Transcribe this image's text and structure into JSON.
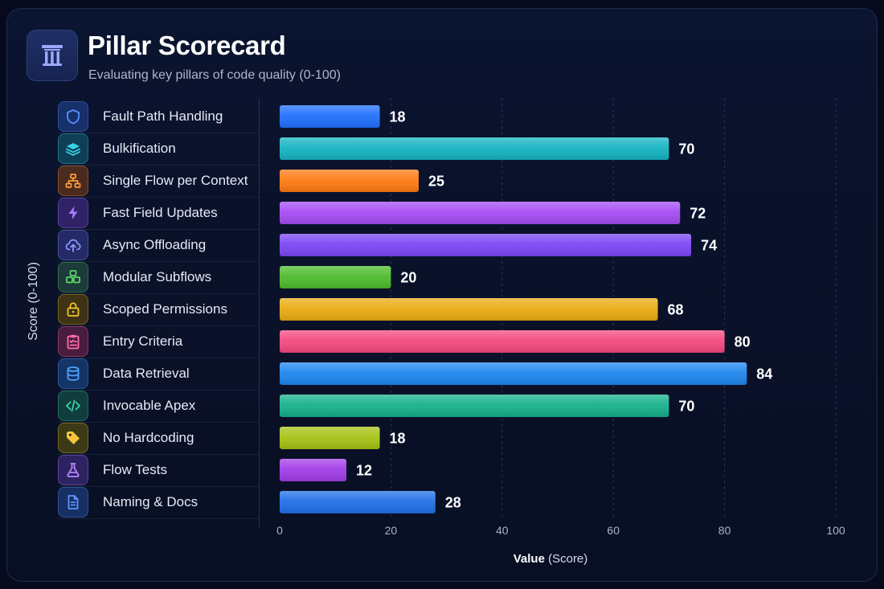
{
  "header": {
    "title": "Pillar Scorecard",
    "subtitle": "Evaluating key pillars of code quality (0-100)",
    "logo_icon": "pillar-icon"
  },
  "chart_data": {
    "type": "bar",
    "orientation": "horizontal",
    "title": "Pillar Scorecard",
    "subtitle": "Evaluating key pillars of code quality (0-100)",
    "ylabel": "Score (0-100)",
    "xlabel_bold": "Value",
    "xlabel_rest": " (Score)",
    "xlim": [
      0,
      100
    ],
    "xticks": [
      0,
      20,
      40,
      60,
      80,
      100
    ],
    "grid": true,
    "categories": [
      "Fault Path Handling",
      "Bulkification",
      "Single Flow per Context",
      "Fast Field Updates",
      "Async Offloading",
      "Modular Subflows",
      "Scoped Permissions",
      "Entry Criteria",
      "Data Retrieval",
      "Invocable Apex",
      "No Hardcoding",
      "Flow Tests",
      "Naming & Docs"
    ],
    "values": [
      18,
      70,
      25,
      72,
      74,
      20,
      68,
      80,
      84,
      70,
      18,
      12,
      28
    ],
    "colors": [
      "#1f6fff",
      "#13b3c2",
      "#ff7a12",
      "#a64bf4",
      "#7b45f4",
      "#4cbb2c",
      "#e9ab12",
      "#f4487f",
      "#1d86ee",
      "#14b18a",
      "#a6c214",
      "#a23ce8",
      "#1f6fe8"
    ],
    "icons": [
      "shield-icon",
      "layers-icon",
      "sitemap-icon",
      "bolt-icon",
      "cloud-upload-icon",
      "cubes-icon",
      "lock-icon",
      "clipboard-icon",
      "database-icon",
      "code-icon",
      "tag-icon",
      "flask-icon",
      "document-icon"
    ]
  }
}
